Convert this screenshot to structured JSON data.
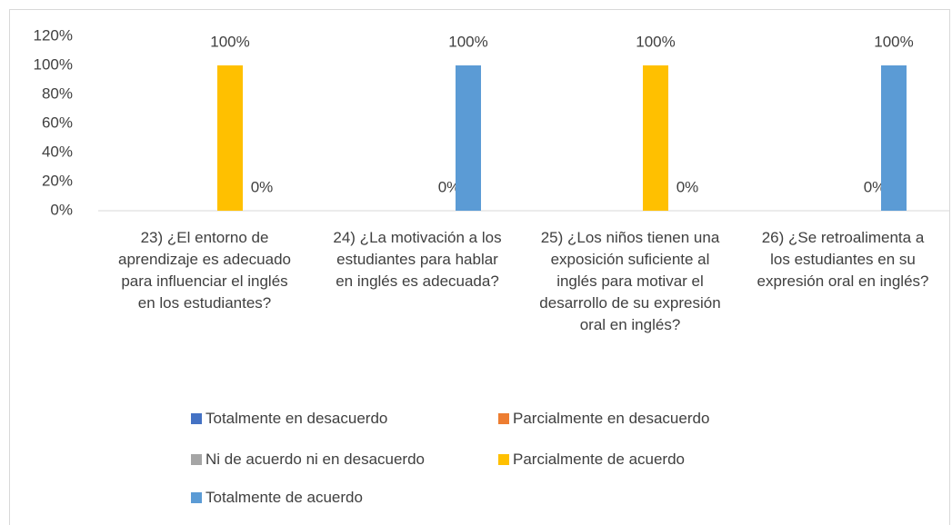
{
  "chart_data": {
    "type": "bar",
    "categories": [
      "23)  ¿El entorno de aprendizaje es adecuado para influenciar el inglés en los estudiantes?",
      "24)  ¿La motivación a los estudiantes para hablar en inglés es adecuada?",
      "25)  ¿Los niños tienen una exposición suficiente al inglés para motivar el desarrollo de su expresión oral en inglés?",
      "26)  ¿Se retroalimenta a los estudiantes en su expresión oral en inglés?"
    ],
    "series": [
      {
        "name": "Totalmente en desacuerdo",
        "color": "#4472c4",
        "values": [
          0,
          0,
          0,
          0
        ]
      },
      {
        "name": "Parcialmente en desacuerdo",
        "color": "#ed7d31",
        "values": [
          0,
          0,
          0,
          0
        ]
      },
      {
        "name": "Ni de acuerdo ni en desacuerdo",
        "color": "#a5a5a5",
        "values": [
          0,
          0,
          0,
          0
        ]
      },
      {
        "name": "Parcialmente de acuerdo",
        "color": "#ffc000",
        "values": [
          100,
          0,
          100,
          0
        ],
        "value_labels": [
          "100%",
          "0%",
          "100%",
          "0%"
        ]
      },
      {
        "name": "Totalmente de acuerdo",
        "color": "#5b9bd5",
        "values": [
          0,
          100,
          0,
          100
        ],
        "value_labels": [
          "0%",
          "100%",
          "0%",
          "100%"
        ]
      }
    ],
    "ylim": [
      0,
      120
    ],
    "yticks": [
      {
        "value": 0,
        "label": "0%"
      },
      {
        "value": 20,
        "label": "20%"
      },
      {
        "value": 40,
        "label": "40%"
      },
      {
        "value": 60,
        "label": "60%"
      },
      {
        "value": 80,
        "label": "80%"
      },
      {
        "value": 100,
        "label": "100%"
      },
      {
        "value": 120,
        "label": "120%"
      }
    ],
    "legend": "bottom"
  }
}
